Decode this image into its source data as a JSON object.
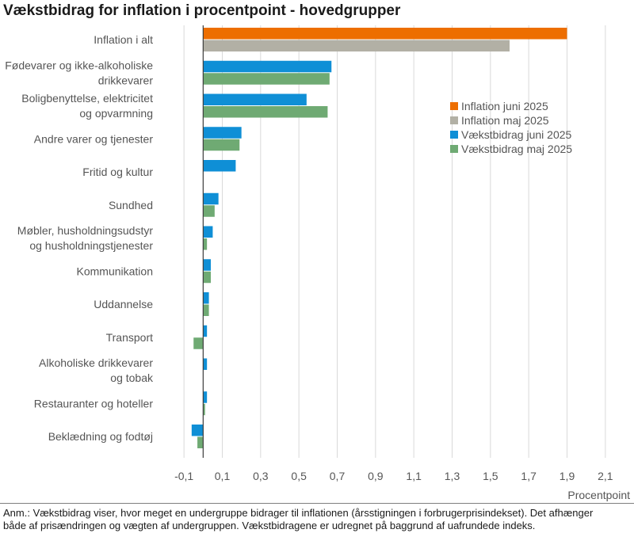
{
  "chart_data": {
    "type": "bar",
    "orientation": "horizontal",
    "title": "Vækstbidrag for inflation i procentpoint - hovedgrupper",
    "xlabel": "Procentpoint",
    "xlim": [
      -0.2,
      2.2
    ],
    "xticks": [
      "-0,1",
      "0,1",
      "0,3",
      "0,5",
      "0,7",
      "0,9",
      "1,1",
      "1,3",
      "1,5",
      "1,7",
      "1,9",
      "2,1"
    ],
    "xtick_values": [
      -0.1,
      0.1,
      0.3,
      0.5,
      0.7,
      0.9,
      1.1,
      1.3,
      1.5,
      1.7,
      1.9,
      2.1
    ],
    "grid": "vertical",
    "legend_position": "right",
    "categories": [
      [
        "Inflation i alt"
      ],
      [
        "Fødevarer og ikke-alkoholiske",
        "drikkevarer"
      ],
      [
        "Boligbenyttelse, elektricitet",
        "og opvarmning"
      ],
      [
        "Andre varer og tjenester"
      ],
      [
        "Fritid og kultur"
      ],
      [
        "Sundhed"
      ],
      [
        "Møbler, husholdningsudstyr",
        "og husholdningstjenester"
      ],
      [
        "Kommunikation"
      ],
      [
        "Uddannelse"
      ],
      [
        "Transport"
      ],
      [
        "Alkoholiske drikkevarer",
        "og tobak"
      ],
      [
        "Restauranter og hoteller"
      ],
      [
        "Beklædning og fodtøj"
      ]
    ],
    "series": [
      {
        "name": "Inflation juni 2025",
        "color": "#ed6e00",
        "values": [
          1.9,
          null,
          null,
          null,
          null,
          null,
          null,
          null,
          null,
          null,
          null,
          null,
          null
        ]
      },
      {
        "name": "Inflation maj 2025",
        "color": "#b2b0a5",
        "values": [
          1.6,
          null,
          null,
          null,
          null,
          null,
          null,
          null,
          null,
          null,
          null,
          null,
          null
        ]
      },
      {
        "name": "Vækstbidrag juni 2025",
        "color": "#0f8fd6",
        "values": [
          null,
          0.67,
          0.54,
          0.2,
          0.17,
          0.08,
          0.05,
          0.04,
          0.03,
          0.02,
          0.02,
          0.02,
          -0.06
        ]
      },
      {
        "name": "Vækstbidrag maj 2025",
        "color": "#6faa73",
        "values": [
          null,
          0.66,
          0.65,
          0.19,
          null,
          0.06,
          0.02,
          0.04,
          0.03,
          -0.05,
          null,
          0.01,
          -0.03
        ]
      }
    ]
  },
  "note": [
    "Anm.: Vækstbidrag viser, hvor meget en undergruppe bidrager til inflationen (årsstigningen i forbrugerprisindekset). Det afhænger",
    "både af prisændringen og vægten af undergruppen. Vækstbidragene er udregnet på baggrund af uafrundede indeks."
  ]
}
